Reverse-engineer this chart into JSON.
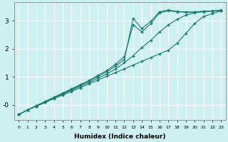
{
  "xlabel": "Humidex (Indice chaleur)",
  "bg_color": "#cff0f0",
  "grid_color": "#ffffff",
  "line_color": "#1a7a6e",
  "marker": "+",
  "xlim": [
    -0.5,
    23.5
  ],
  "ylim": [
    -0.55,
    3.65
  ],
  "line1_x": [
    0,
    1,
    2,
    3,
    4,
    5,
    6,
    7,
    8,
    9,
    10,
    11,
    12,
    13,
    14,
    15,
    16,
    17,
    18,
    19,
    20,
    21,
    22,
    23
  ],
  "line1_y": [
    -0.35,
    -0.18,
    -0.05,
    0.08,
    0.22,
    0.35,
    0.48,
    0.61,
    0.75,
    0.88,
    1.02,
    1.15,
    1.28,
    1.42,
    1.55,
    1.68,
    1.82,
    1.95,
    2.2,
    2.55,
    2.9,
    3.15,
    3.25,
    3.35
  ],
  "line2_x": [
    0,
    1,
    2,
    3,
    4,
    5,
    6,
    7,
    8,
    9,
    10,
    11,
    12,
    13,
    14,
    15,
    16,
    17,
    18,
    19,
    20,
    21,
    22,
    23
  ],
  "line2_y": [
    -0.35,
    -0.18,
    -0.05,
    0.1,
    0.25,
    0.38,
    0.52,
    0.66,
    0.8,
    0.95,
    1.1,
    1.28,
    1.5,
    1.75,
    2.05,
    2.3,
    2.6,
    2.85,
    3.05,
    3.2,
    3.28,
    3.32,
    3.34,
    3.36
  ],
  "line3_x": [
    0,
    1,
    2,
    3,
    4,
    5,
    6,
    7,
    8,
    9,
    10,
    11,
    12,
    13,
    14,
    15,
    16,
    17,
    18,
    19,
    20,
    21,
    22,
    23
  ],
  "line3_y": [
    -0.35,
    -0.18,
    -0.03,
    0.12,
    0.27,
    0.42,
    0.57,
    0.72,
    0.87,
    1.05,
    1.22,
    1.45,
    1.72,
    2.85,
    2.6,
    2.9,
    3.28,
    3.35,
    3.32,
    3.3,
    3.3,
    3.33,
    3.34,
    3.37
  ],
  "line4_x": [
    0,
    1,
    2,
    3,
    4,
    5,
    6,
    7,
    8,
    9,
    10,
    11,
    12,
    13,
    14,
    15,
    16,
    17,
    18,
    19,
    20,
    21,
    22,
    23
  ],
  "line4_y": [
    -0.35,
    -0.18,
    -0.04,
    0.11,
    0.26,
    0.4,
    0.55,
    0.7,
    0.85,
    1.01,
    1.18,
    1.38,
    1.62,
    3.08,
    2.72,
    2.98,
    3.32,
    3.38,
    3.33,
    3.31,
    3.31,
    3.34,
    3.35,
    3.38
  ]
}
